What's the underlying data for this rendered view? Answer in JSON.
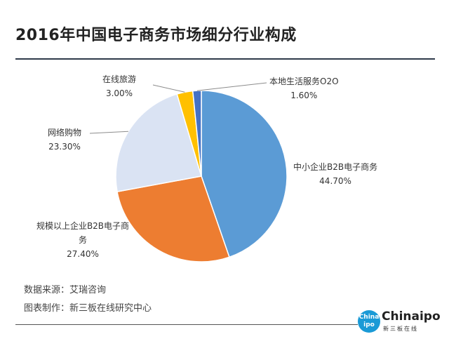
{
  "chart_data": {
    "type": "pie",
    "title": "2016年中国电子商务市场细分行业构成",
    "slices": [
      {
        "label": "中小企业B2B电子商务",
        "value": 44.7,
        "display": "44.70%",
        "color": "#5b9bd5"
      },
      {
        "label": "规模以上企业B2B电子商务",
        "value": 27.4,
        "display": "27.40%",
        "color": "#ed7d31"
      },
      {
        "label": "网络购物",
        "value": 23.3,
        "display": "23.30%",
        "color": "#dae3f3"
      },
      {
        "label": "在线旅游",
        "value": 3.0,
        "display": "3.00%",
        "color": "#ffc000"
      },
      {
        "label": "本地生活服务O2O",
        "value": 1.6,
        "display": "1.60%",
        "color": "#4472c4"
      }
    ]
  },
  "footer": {
    "source": "数据来源：艾瑞咨询",
    "made_by": "图表制作：新三板在线研究中心"
  },
  "logo": {
    "badge": "China ipo",
    "name": "Chinaipo",
    "subtitle": "新三板在线"
  }
}
